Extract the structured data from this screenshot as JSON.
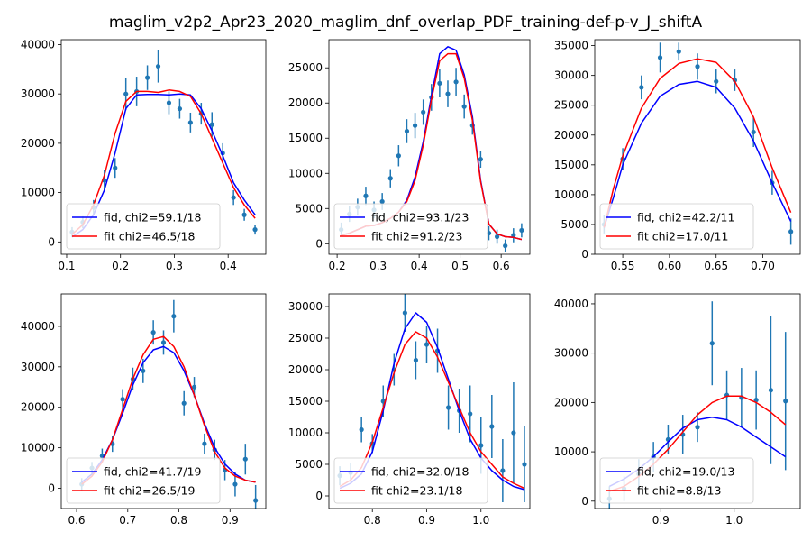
{
  "figure": {
    "suptitle": "maglim_v2p2_Apr23_2020_maglim_dnf_overlap_PDF_training-def-p-v_J_shiftA",
    "colors": {
      "data": "#1f77b4",
      "fid": "#0000ff",
      "fit": "#ff0000"
    }
  },
  "chart_data": [
    {
      "type": "line",
      "xlim": [
        0.09,
        0.47
      ],
      "ylim": [
        -2500,
        41000
      ],
      "xticks": [
        0.1,
        0.2,
        0.3,
        0.4
      ],
      "xtick_labels": [
        "0.1",
        "0.2",
        "0.3",
        "0.4"
      ],
      "yticks": [
        0,
        10000,
        20000,
        30000,
        40000
      ],
      "ytick_labels": [
        "0",
        "10000",
        "20000",
        "30000",
        "40000"
      ],
      "legend_position": "lower-left",
      "points": {
        "x": [
          0.11,
          0.13,
          0.15,
          0.17,
          0.19,
          0.21,
          0.23,
          0.25,
          0.27,
          0.29,
          0.31,
          0.33,
          0.35,
          0.37,
          0.39,
          0.41,
          0.43,
          0.45
        ],
        "y": [
          2000,
          4000,
          7000,
          12500,
          15000,
          30000,
          30500,
          33300,
          35600,
          28200,
          27000,
          24200,
          26000,
          23800,
          18000,
          9000,
          5500,
          2500
        ],
        "err": [
          1000,
          1200,
          1500,
          2000,
          2000,
          3300,
          3000,
          2500,
          3300,
          2300,
          2000,
          2000,
          2200,
          2500,
          2000,
          1500,
          1200,
          1000
        ]
      },
      "series": [
        {
          "name": "fid, chi2=59.1/18",
          "x": [
            0.11,
            0.13,
            0.15,
            0.17,
            0.19,
            0.21,
            0.23,
            0.25,
            0.27,
            0.29,
            0.31,
            0.33,
            0.35,
            0.37,
            0.39,
            0.41,
            0.43,
            0.45
          ],
          "y": [
            1000,
            2500,
            5500,
            10500,
            18000,
            27000,
            29800,
            29900,
            29900,
            29800,
            30000,
            29800,
            27000,
            22500,
            17500,
            12000,
            8500,
            5500
          ]
        },
        {
          "name": "fit chi2=46.5/18",
          "x": [
            0.11,
            0.13,
            0.15,
            0.17,
            0.19,
            0.21,
            0.23,
            0.25,
            0.27,
            0.29,
            0.31,
            0.33,
            0.35,
            0.37,
            0.39,
            0.41,
            0.43,
            0.45
          ],
          "y": [
            1500,
            3500,
            7500,
            13500,
            22000,
            28500,
            30500,
            30500,
            30300,
            30800,
            30500,
            29500,
            26000,
            21000,
            16000,
            11000,
            7500,
            4800
          ]
        }
      ]
    },
    {
      "type": "line",
      "xlim": [
        0.18,
        0.67
      ],
      "ylim": [
        -1500,
        29000
      ],
      "xticks": [
        0.2,
        0.3,
        0.4,
        0.5,
        0.6
      ],
      "xtick_labels": [
        "0.2",
        "0.3",
        "0.4",
        "0.5",
        "0.6"
      ],
      "yticks": [
        0,
        5000,
        10000,
        15000,
        20000,
        25000
      ],
      "ytick_labels": [
        "0",
        "5000",
        "10000",
        "15000",
        "20000",
        "25000"
      ],
      "legend_position": "lower-left",
      "points": {
        "x": [
          0.21,
          0.23,
          0.25,
          0.27,
          0.29,
          0.31,
          0.33,
          0.35,
          0.37,
          0.39,
          0.41,
          0.43,
          0.45,
          0.47,
          0.49,
          0.51,
          0.53,
          0.55,
          0.57,
          0.59,
          0.61,
          0.63,
          0.65
        ],
        "y": [
          2000,
          4200,
          5200,
          6800,
          4800,
          6000,
          9300,
          12500,
          16000,
          16800,
          18700,
          20800,
          22800,
          21300,
          23000,
          19500,
          16800,
          12000,
          1500,
          1000,
          -300,
          1200,
          1900
        ],
        "err": [
          1000,
          1100,
          1200,
          1300,
          1200,
          1200,
          1300,
          1500,
          1700,
          1800,
          1800,
          1900,
          2000,
          1900,
          2000,
          1700,
          1300,
          1200,
          1000,
          1000,
          900,
          1000,
          1000
        ]
      },
      "series": [
        {
          "name": "fid, chi2=93.1/23",
          "x": [
            0.21,
            0.23,
            0.25,
            0.27,
            0.29,
            0.31,
            0.33,
            0.35,
            0.37,
            0.39,
            0.41,
            0.43,
            0.45,
            0.47,
            0.49,
            0.51,
            0.53,
            0.55,
            0.57,
            0.59,
            0.61,
            0.63,
            0.65
          ],
          "y": [
            1200,
            1500,
            2000,
            2500,
            2600,
            3000,
            3600,
            4500,
            6200,
            9500,
            14500,
            21000,
            27000,
            28000,
            27500,
            24000,
            18000,
            9000,
            2800,
            1400,
            1000,
            900,
            600
          ]
        },
        {
          "name": "fit chi2=91.2/23",
          "x": [
            0.21,
            0.23,
            0.25,
            0.27,
            0.29,
            0.31,
            0.33,
            0.35,
            0.37,
            0.39,
            0.41,
            0.43,
            0.45,
            0.47,
            0.49,
            0.51,
            0.53,
            0.55,
            0.57,
            0.59,
            0.61,
            0.63,
            0.65
          ],
          "y": [
            1200,
            1500,
            2000,
            2500,
            2600,
            3000,
            3600,
            4500,
            6000,
            9000,
            14000,
            20500,
            26000,
            27000,
            27000,
            23500,
            17500,
            8800,
            2800,
            1400,
            1000,
            900,
            600
          ]
        }
      ]
    },
    {
      "type": "line",
      "xlim": [
        0.52,
        0.74
      ],
      "ylim": [
        0,
        36000
      ],
      "xticks": [
        0.55,
        0.6,
        0.65,
        0.7
      ],
      "xtick_labels": [
        "0.55",
        "0.60",
        "0.65",
        "0.70"
      ],
      "yticks": [
        0,
        5000,
        10000,
        15000,
        20000,
        25000,
        30000,
        35000
      ],
      "ytick_labels": [
        "0",
        "5000",
        "10000",
        "15000",
        "20000",
        "25000",
        "30000",
        "35000"
      ],
      "legend_position": "lower-left",
      "points": {
        "x": [
          0.53,
          0.55,
          0.57,
          0.59,
          0.61,
          0.63,
          0.65,
          0.67,
          0.69,
          0.71,
          0.73
        ],
        "y": [
          5000,
          16000,
          28000,
          33000,
          34000,
          31500,
          29000,
          29200,
          20500,
          12000,
          3800
        ],
        "err": [
          1500,
          1800,
          2000,
          2500,
          1500,
          2200,
          2000,
          1800,
          2500,
          2000,
          2200
        ]
      },
      "series": [
        {
          "name": "fid, chi2=42.2/11",
          "x": [
            0.53,
            0.54,
            0.55,
            0.57,
            0.59,
            0.61,
            0.63,
            0.65,
            0.67,
            0.69,
            0.71,
            0.73
          ],
          "y": [
            4500,
            9500,
            15000,
            22000,
            26500,
            28500,
            29000,
            28000,
            24500,
            19000,
            12000,
            5500
          ]
        },
        {
          "name": "fit chi2=17.0/11",
          "x": [
            0.53,
            0.54,
            0.55,
            0.57,
            0.59,
            0.61,
            0.63,
            0.65,
            0.67,
            0.69,
            0.71,
            0.73
          ],
          "y": [
            4500,
            11000,
            16500,
            24500,
            29500,
            32000,
            32800,
            32200,
            29000,
            23000,
            14500,
            7000
          ]
        }
      ]
    },
    {
      "type": "line",
      "xlim": [
        0.57,
        0.97
      ],
      "ylim": [
        -5000,
        48000
      ],
      "xticks": [
        0.6,
        0.7,
        0.8,
        0.9
      ],
      "xtick_labels": [
        "0.6",
        "0.7",
        "0.8",
        "0.9"
      ],
      "yticks": [
        0,
        10000,
        20000,
        30000,
        40000
      ],
      "ytick_labels": [
        "0",
        "10000",
        "20000",
        "30000",
        "40000"
      ],
      "legend_position": "lower-left",
      "points": {
        "x": [
          0.61,
          0.63,
          0.65,
          0.67,
          0.69,
          0.71,
          0.73,
          0.75,
          0.77,
          0.79,
          0.81,
          0.83,
          0.85,
          0.87,
          0.89,
          0.91,
          0.93,
          0.95
        ],
        "y": [
          1000,
          5000,
          8000,
          11000,
          22000,
          27000,
          29000,
          38500,
          36000,
          42500,
          21000,
          25000,
          11000,
          9500,
          4500,
          1000,
          7200,
          -3000
        ],
        "err": [
          1500,
          1500,
          1800,
          2000,
          2500,
          2800,
          3000,
          3000,
          3000,
          4000,
          3000,
          2500,
          2500,
          2500,
          2500,
          3000,
          3800,
          3800
        ]
      },
      "series": [
        {
          "name": "fid, chi2=41.7/19",
          "x": [
            0.61,
            0.63,
            0.65,
            0.67,
            0.69,
            0.71,
            0.73,
            0.75,
            0.77,
            0.79,
            0.81,
            0.83,
            0.85,
            0.87,
            0.89,
            0.91,
            0.93,
            0.95
          ],
          "y": [
            1500,
            3500,
            7000,
            12000,
            18500,
            25500,
            31000,
            34200,
            35000,
            33500,
            29000,
            23000,
            16000,
            10000,
            6000,
            3500,
            2000,
            1500
          ]
        },
        {
          "name": "fit chi2=26.5/19",
          "x": [
            0.61,
            0.63,
            0.65,
            0.67,
            0.69,
            0.71,
            0.73,
            0.75,
            0.77,
            0.79,
            0.81,
            0.83,
            0.85,
            0.87,
            0.89,
            0.91,
            0.93,
            0.95
          ],
          "y": [
            1000,
            3000,
            6500,
            12000,
            19500,
            27000,
            33000,
            36800,
            37500,
            35000,
            30000,
            23000,
            15500,
            9000,
            5000,
            3000,
            2000,
            1500
          ]
        }
      ]
    },
    {
      "type": "line",
      "xlim": [
        0.72,
        1.09
      ],
      "ylim": [
        -2000,
        32000
      ],
      "xticks": [
        0.8,
        0.9,
        1.0
      ],
      "xtick_labels": [
        "0.8",
        "0.9",
        "1.0"
      ],
      "yticks": [
        0,
        5000,
        10000,
        15000,
        20000,
        25000,
        30000
      ],
      "ytick_labels": [
        "0",
        "5000",
        "10000",
        "15000",
        "20000",
        "25000",
        "30000"
      ],
      "legend_position": "lower-left",
      "points": {
        "x": [
          0.74,
          0.76,
          0.78,
          0.8,
          0.82,
          0.84,
          0.86,
          0.88,
          0.9,
          0.92,
          0.94,
          0.96,
          0.98,
          1.0,
          1.02,
          1.04,
          1.06,
          1.08
        ],
        "y": [
          3200,
          3700,
          10500,
          8300,
          15000,
          20000,
          29000,
          21500,
          24000,
          23000,
          14000,
          13500,
          13000,
          8000,
          11000,
          4000,
          10000,
          5000
        ],
        "err": [
          1500,
          1500,
          2000,
          1500,
          2500,
          2500,
          3000,
          3000,
          3000,
          3500,
          3500,
          3500,
          4500,
          4500,
          5000,
          5000,
          8000,
          6000
        ]
      },
      "series": [
        {
          "name": "fid, chi2=32.0/18",
          "x": [
            0.74,
            0.76,
            0.78,
            0.8,
            0.82,
            0.84,
            0.86,
            0.88,
            0.9,
            0.92,
            0.94,
            0.96,
            0.98,
            1.0,
            1.02,
            1.04,
            1.06,
            1.08
          ],
          "y": [
            1200,
            2000,
            3500,
            7000,
            13500,
            21000,
            26500,
            29000,
            27500,
            23500,
            18500,
            13500,
            9000,
            6000,
            4000,
            2500,
            1500,
            1000
          ]
        },
        {
          "name": "fit chi2=23.1/18",
          "x": [
            0.74,
            0.76,
            0.78,
            0.8,
            0.82,
            0.84,
            0.86,
            0.88,
            0.9,
            0.92,
            0.94,
            0.96,
            0.98,
            1.0,
            1.02,
            1.04,
            1.06,
            1.08
          ],
          "y": [
            1500,
            2500,
            4500,
            8500,
            14000,
            19500,
            24000,
            26000,
            25000,
            22000,
            18000,
            14000,
            10000,
            7000,
            5000,
            3000,
            2000,
            1200
          ]
        }
      ]
    },
    {
      "type": "line",
      "xlim": [
        0.81,
        1.09
      ],
      "ylim": [
        -1500,
        42000
      ],
      "xticks": [
        0.9,
        1.0
      ],
      "xtick_labels": [
        "0.9",
        "1.0"
      ],
      "yticks": [
        0,
        10000,
        20000,
        30000,
        40000
      ],
      "ytick_labels": [
        "0",
        "10000",
        "20000",
        "30000",
        "40000"
      ],
      "legend_position": "lower-left",
      "points": {
        "x": [
          0.83,
          0.85,
          0.87,
          0.89,
          0.91,
          0.93,
          0.95,
          0.97,
          0.99,
          1.01,
          1.03,
          1.05,
          1.07
        ],
        "y": [
          500,
          2500,
          5500,
          9000,
          12500,
          13500,
          15000,
          32000,
          21500,
          21000,
          20500,
          22500,
          20300
        ],
        "err": [
          2500,
          2500,
          3000,
          3000,
          3000,
          4000,
          3000,
          8500,
          5000,
          6000,
          6000,
          15000,
          14000
        ]
      },
      "series": [
        {
          "name": "fid, chi2=19.0/13",
          "x": [
            0.83,
            0.85,
            0.87,
            0.89,
            0.91,
            0.93,
            0.95,
            0.97,
            0.99,
            1.01,
            1.03,
            1.05,
            1.07
          ],
          "y": [
            3000,
            4500,
            6500,
            9000,
            12000,
            14800,
            16500,
            17000,
            16500,
            15000,
            13000,
            11000,
            9000
          ]
        },
        {
          "name": "fit chi2=8.8/13",
          "x": [
            0.83,
            0.85,
            0.87,
            0.89,
            0.91,
            0.93,
            0.95,
            0.97,
            0.99,
            1.01,
            1.03,
            1.05,
            1.07
          ],
          "y": [
            2000,
            3000,
            5000,
            7500,
            10500,
            14000,
            17500,
            20000,
            21300,
            21300,
            20000,
            18000,
            15500
          ]
        }
      ]
    }
  ]
}
